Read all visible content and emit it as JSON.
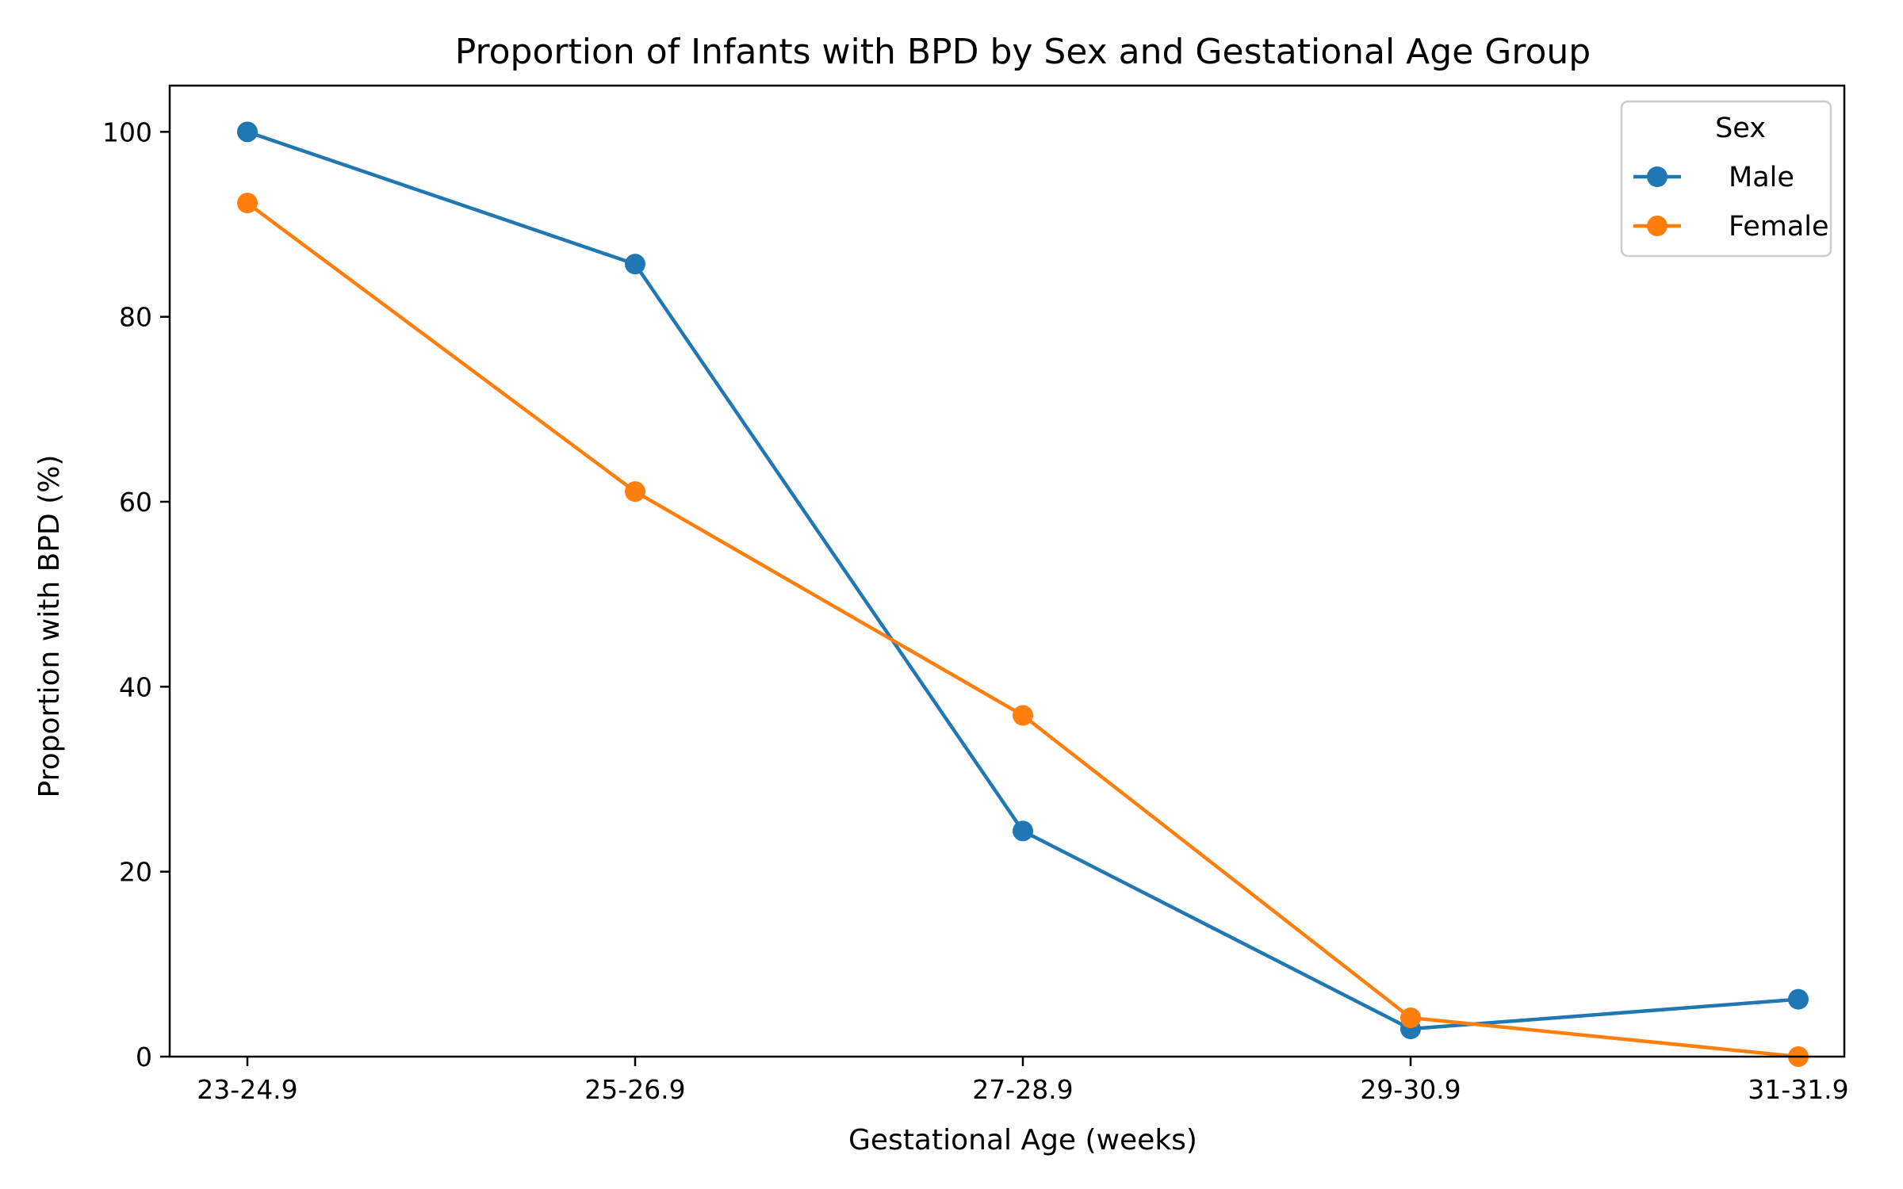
{
  "chart_data": {
    "type": "line",
    "title": "Proportion of Infants with BPD by Sex and Gestational Age Group",
    "xlabel": "Gestational Age (weeks)",
    "ylabel": "Proportion with BPD (%)",
    "categories": [
      "23-24.9",
      "25-26.9",
      "27-28.9",
      "29-30.9",
      "31-31.9"
    ],
    "ylim": [
      0,
      105
    ],
    "yticks": [
      0,
      20,
      40,
      60,
      80,
      100
    ],
    "grid": false,
    "legend": {
      "title": "Sex",
      "placement": "top-right"
    },
    "series": [
      {
        "name": "Male",
        "color": "#1f77b4",
        "values": [
          100,
          85.7,
          24.4,
          3.0,
          6.2
        ]
      },
      {
        "name": "Female",
        "color": "#ff7f0e",
        "values": [
          92.3,
          61.1,
          36.9,
          4.2,
          0
        ]
      }
    ]
  }
}
